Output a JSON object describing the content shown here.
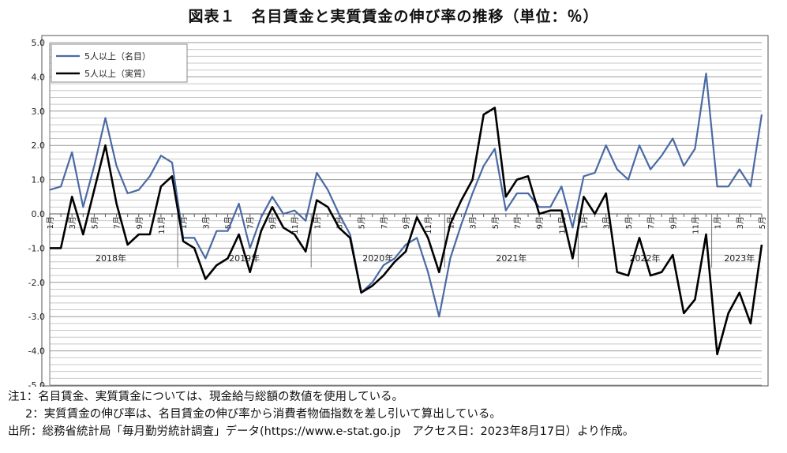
{
  "title": "図表１　名目賃金と実質賃金の伸び率の推移（単位：％）",
  "notes": {
    "note1": "注1：名目賃金、実質賃金については、現金給与総額の数値を使用している。",
    "note2": "2：実質賃金の伸び率は、名目賃金の伸び率から消費者物価指数を差し引いて算出している。",
    "source": "出所：総務省統計局「毎月勤労統計調査」データ(https://www.e-stat.go.jp　アクセス日：2023年8月17日）より作成。"
  },
  "chart_data": {
    "type": "line",
    "ylim": [
      -5.0,
      5.0
    ],
    "yticks": [
      "5.0",
      "4.0",
      "3.0",
      "2.0",
      "1.0",
      "0.0",
      "-1.0",
      "-2.0",
      "-3.0",
      "-4.0",
      "-5.0"
    ],
    "grid": true,
    "legend_placement": "top-left",
    "month_labels": [
      "1月",
      "",
      "3月",
      "",
      "5月",
      "",
      "7月",
      "",
      "9月",
      "",
      "11月",
      "",
      "1月",
      "",
      "3月",
      "",
      "5月",
      "",
      "7月",
      "",
      "9月",
      "",
      "11月",
      "",
      "1月",
      "",
      "3月",
      "",
      "5月",
      "",
      "7月",
      "",
      "9月",
      "",
      "11月",
      "",
      "1月",
      "",
      "3月",
      "",
      "5月",
      "",
      "7月",
      "",
      "9月",
      "",
      "11月",
      "",
      "1月",
      "",
      "3月",
      "",
      "5月",
      "",
      "7月",
      "",
      "9月",
      "",
      "11月",
      "",
      "1月",
      "",
      "3月",
      "",
      "5月"
    ],
    "year_labels": [
      {
        "label": "2018年",
        "start_index": 0
      },
      {
        "label": "2019年",
        "start_index": 12
      },
      {
        "label": "2020年",
        "start_index": 24
      },
      {
        "label": "2021年",
        "start_index": 36
      },
      {
        "label": "2022年",
        "start_index": 48
      },
      {
        "label": "2023年",
        "start_index": 60
      }
    ],
    "series": [
      {
        "name": "5人以上（名目）",
        "color": "#4a6aa5",
        "values": [
          0.7,
          0.8,
          1.8,
          0.2,
          1.4,
          2.8,
          1.4,
          0.6,
          0.7,
          1.1,
          1.7,
          1.5,
          -0.7,
          -0.7,
          -1.3,
          -0.5,
          -0.5,
          0.3,
          -1.0,
          -0.1,
          0.5,
          0.0,
          0.1,
          -0.2,
          1.2,
          0.7,
          0.0,
          -0.6,
          -2.3,
          -2.0,
          -1.5,
          -1.3,
          -0.9,
          -0.7,
          -1.7,
          -3.0,
          -1.3,
          -0.3,
          0.6,
          1.4,
          1.9,
          0.1,
          0.6,
          0.6,
          0.2,
          0.2,
          0.8,
          -0.4,
          1.1,
          1.2,
          2.0,
          1.3,
          1.0,
          2.0,
          1.3,
          1.7,
          2.2,
          1.4,
          1.9,
          4.1,
          0.8,
          0.8,
          1.3,
          0.8,
          2.9
        ]
      },
      {
        "name": "5人以上（実質）",
        "color": "#000000",
        "values": [
          -1.0,
          -1.0,
          0.5,
          -0.6,
          0.7,
          2.0,
          0.3,
          -0.9,
          -0.6,
          -0.6,
          0.8,
          1.1,
          -0.8,
          -1.0,
          -1.9,
          -1.5,
          -1.3,
          -0.6,
          -1.7,
          -0.5,
          0.2,
          -0.4,
          -0.6,
          -1.1,
          0.4,
          0.2,
          -0.4,
          -0.7,
          -2.3,
          -2.1,
          -1.8,
          -1.4,
          -1.1,
          -0.1,
          -0.7,
          -1.7,
          -0.3,
          0.4,
          1.0,
          2.9,
          3.1,
          0.5,
          1.0,
          1.1,
          0.0,
          0.1,
          0.1,
          -1.3,
          0.5,
          0.0,
          0.6,
          -1.7,
          -1.8,
          -0.7,
          -1.8,
          -1.7,
          -1.2,
          -2.9,
          -2.5,
          -0.6,
          -4.1,
          -2.9,
          -2.3,
          -3.2,
          -0.9
        ]
      }
    ]
  }
}
